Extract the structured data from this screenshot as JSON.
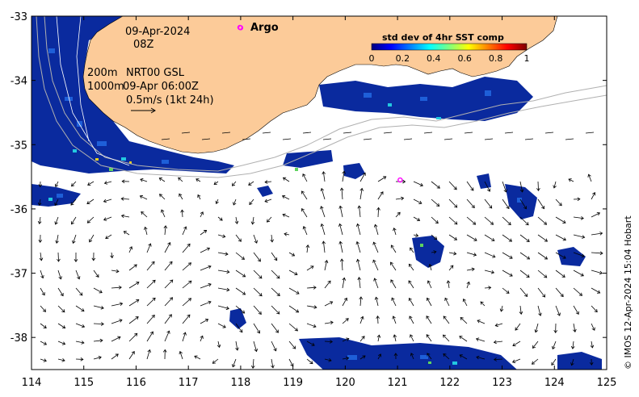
{
  "date_text": "09-Apr-2024",
  "time_text": "08Z",
  "legend": {
    "contour_shallow": "200m",
    "contour_deep": "1000m",
    "current_source": "NRT00 GSL",
    "current_time": "09-Apr 06:00Z",
    "arrow_scale": "0.5m/s (1kt 24h)"
  },
  "argo_label": "Argo",
  "colorbar": {
    "title": "std dev of 4hr SST comp",
    "ticks": [
      "0",
      "0.2",
      "0.4",
      "0.6",
      "0.8",
      "1"
    ],
    "colors": [
      "#00007f",
      "#0000ff",
      "#007fff",
      "#00ffff",
      "#7fff7f",
      "#ffff00",
      "#ff7f00",
      "#ff0000",
      "#7f0000"
    ]
  },
  "credit": "© IMOS 12-Apr-2024 15:04 Hobart",
  "axes": {
    "x_ticks": [
      "114",
      "115",
      "116",
      "117",
      "118",
      "119",
      "120",
      "121",
      "122",
      "123",
      "124",
      "125"
    ],
    "y_ticks": [
      "-33",
      "-34",
      "-35",
      "-36",
      "-37",
      "-38"
    ],
    "lon_range": [
      114,
      125
    ],
    "lat_range": [
      -38.5,
      -33
    ]
  },
  "colors": {
    "land": "#fccb99",
    "ocean": "#ffffff",
    "argo_marker": "#ff00ff"
  },
  "argo_floats": [
    {
      "lon": 118.0,
      "lat": -33.18
    },
    {
      "lon": 121.05,
      "lat": -35.55
    }
  ]
}
